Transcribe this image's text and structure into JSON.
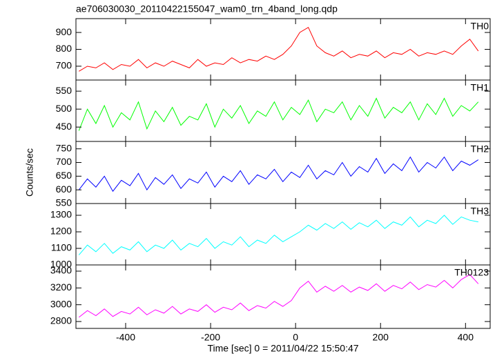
{
  "chart_data": {
    "type": "line",
    "title": "ae706030030_20110422155047_wam0_trn_4band_long.qdp",
    "y_label": "Counts/sec",
    "x_label": "Time [sec] 0 = 2011/04/22 15:50:47",
    "xlim": [
      -517,
      458
    ],
    "xticks": [
      -400,
      -200,
      0,
      200,
      400
    ],
    "x": [
      -510,
      -490,
      -470,
      -450,
      -430,
      -410,
      -390,
      -370,
      -350,
      -330,
      -310,
      -290,
      -270,
      -250,
      -230,
      -210,
      -190,
      -170,
      -150,
      -130,
      -110,
      -90,
      -70,
      -50,
      -30,
      -10,
      10,
      30,
      50,
      70,
      90,
      110,
      130,
      150,
      170,
      190,
      210,
      230,
      250,
      270,
      290,
      310,
      330,
      350,
      370,
      390,
      410,
      430
    ],
    "series": [
      {
        "name": "TH0",
        "color": "#ff0000",
        "ylim": [
          618,
          982
        ],
        "yticks": [
          700,
          800,
          900
        ],
        "values": [
          670,
          700,
          690,
          720,
          680,
          710,
          700,
          740,
          690,
          720,
          700,
          730,
          710,
          690,
          740,
          700,
          720,
          710,
          750,
          720,
          740,
          730,
          760,
          740,
          770,
          820,
          900,
          930,
          820,
          780,
          760,
          790,
          750,
          770,
          760,
          790,
          750,
          780,
          770,
          800,
          760,
          780,
          770,
          790,
          770,
          820,
          860,
          790
        ]
      },
      {
        "name": "TH1",
        "color": "#00ff00",
        "ylim": [
          410,
          581
        ],
        "yticks": [
          450,
          500,
          550
        ],
        "values": [
          440,
          500,
          460,
          510,
          450,
          490,
          470,
          520,
          445,
          495,
          465,
          505,
          455,
          480,
          470,
          515,
          450,
          500,
          475,
          510,
          460,
          495,
          480,
          520,
          470,
          505,
          485,
          525,
          465,
          500,
          490,
          520,
          470,
          510,
          480,
          530,
          475,
          505,
          490,
          520,
          470,
          515,
          485,
          530,
          480,
          510,
          495,
          520
        ]
      },
      {
        "name": "TH2",
        "color": "#0000ff",
        "ylim": [
          550,
          777
        ],
        "yticks": [
          550,
          600,
          650,
          700,
          750
        ],
        "values": [
          600,
          640,
          610,
          650,
          595,
          635,
          615,
          660,
          600,
          645,
          620,
          655,
          605,
          640,
          625,
          665,
          610,
          650,
          630,
          670,
          620,
          655,
          640,
          675,
          630,
          665,
          645,
          690,
          640,
          670,
          655,
          700,
          650,
          685,
          665,
          715,
          660,
          695,
          670,
          720,
          665,
          700,
          680,
          720,
          670,
          705,
          690,
          710
        ]
      },
      {
        "name": "TH3",
        "color": "#00ffff",
        "ylim": [
          1000,
          1371
        ],
        "yticks": [
          1000,
          1100,
          1200,
          1300
        ],
        "values": [
          1060,
          1120,
          1080,
          1130,
          1070,
          1110,
          1090,
          1140,
          1080,
          1120,
          1100,
          1150,
          1090,
          1130,
          1110,
          1160,
          1100,
          1140,
          1120,
          1170,
          1110,
          1150,
          1130,
          1180,
          1140,
          1170,
          1200,
          1240,
          1210,
          1250,
          1220,
          1260,
          1215,
          1255,
          1230,
          1270,
          1220,
          1260,
          1240,
          1290,
          1230,
          1270,
          1250,
          1300,
          1245,
          1290,
          1270,
          1260
        ]
      },
      {
        "name": "TH0123",
        "color": "#ff00ff",
        "ylim": [
          2718,
          3474
        ],
        "yticks": [
          2800,
          3000,
          3200,
          3400
        ],
        "values": [
          2850,
          2930,
          2870,
          2950,
          2860,
          2920,
          2890,
          2970,
          2880,
          2940,
          2900,
          2980,
          2890,
          2950,
          2920,
          3000,
          2910,
          2970,
          2940,
          3020,
          2930,
          2990,
          2960,
          3040,
          2980,
          3050,
          3200,
          3280,
          3150,
          3220,
          3160,
          3230,
          3150,
          3210,
          3170,
          3250,
          3160,
          3230,
          3190,
          3270,
          3180,
          3240,
          3210,
          3290,
          3200,
          3300,
          3360,
          3250
        ]
      }
    ]
  }
}
